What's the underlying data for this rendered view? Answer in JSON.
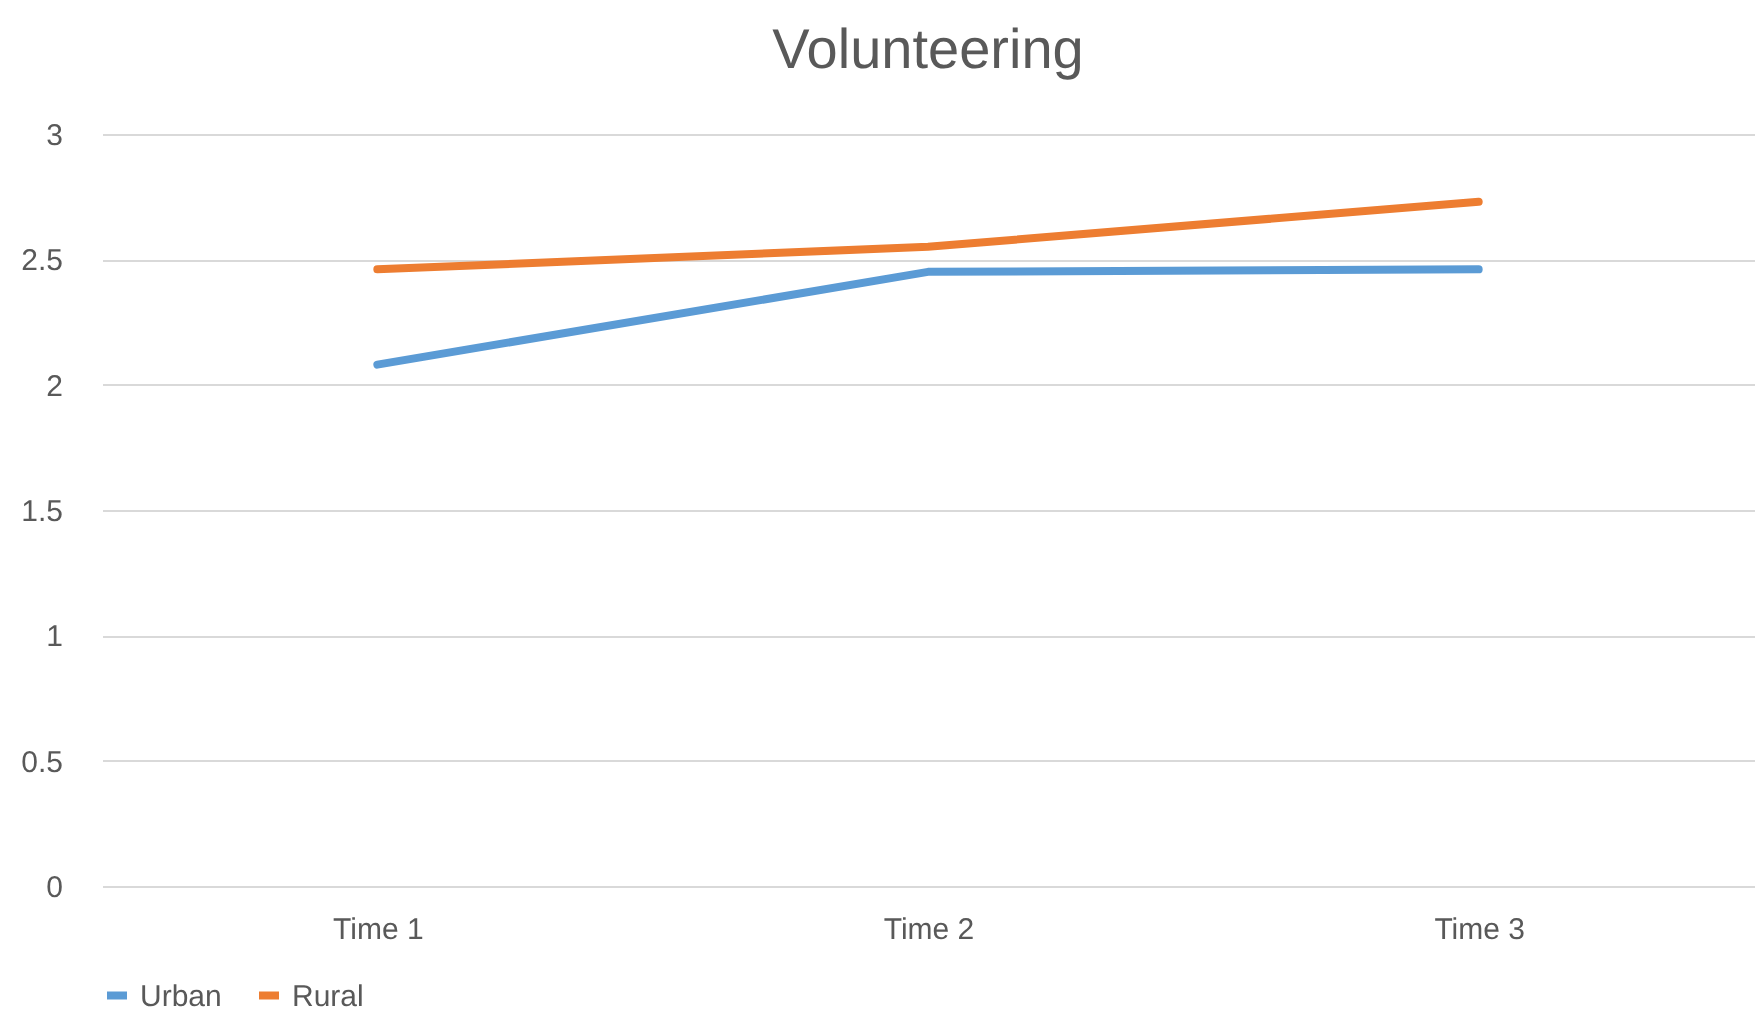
{
  "chart_data": {
    "type": "line",
    "title": "Volunteering",
    "categories": [
      "Time 1",
      "Time 2",
      "Time 3"
    ],
    "series": [
      {
        "name": "Urban",
        "color": "#5b9bd5",
        "values": [
          2.08,
          2.45,
          2.46
        ]
      },
      {
        "name": "Rural",
        "color": "#ed7d31",
        "values": [
          2.46,
          2.55,
          2.73
        ]
      }
    ],
    "ylim": [
      0,
      3
    ],
    "yticks": [
      0,
      0.5,
      1,
      1.5,
      2,
      2.5,
      3
    ],
    "grid": "y",
    "legend": "bottom",
    "marker": "none",
    "line_style": "solid"
  }
}
